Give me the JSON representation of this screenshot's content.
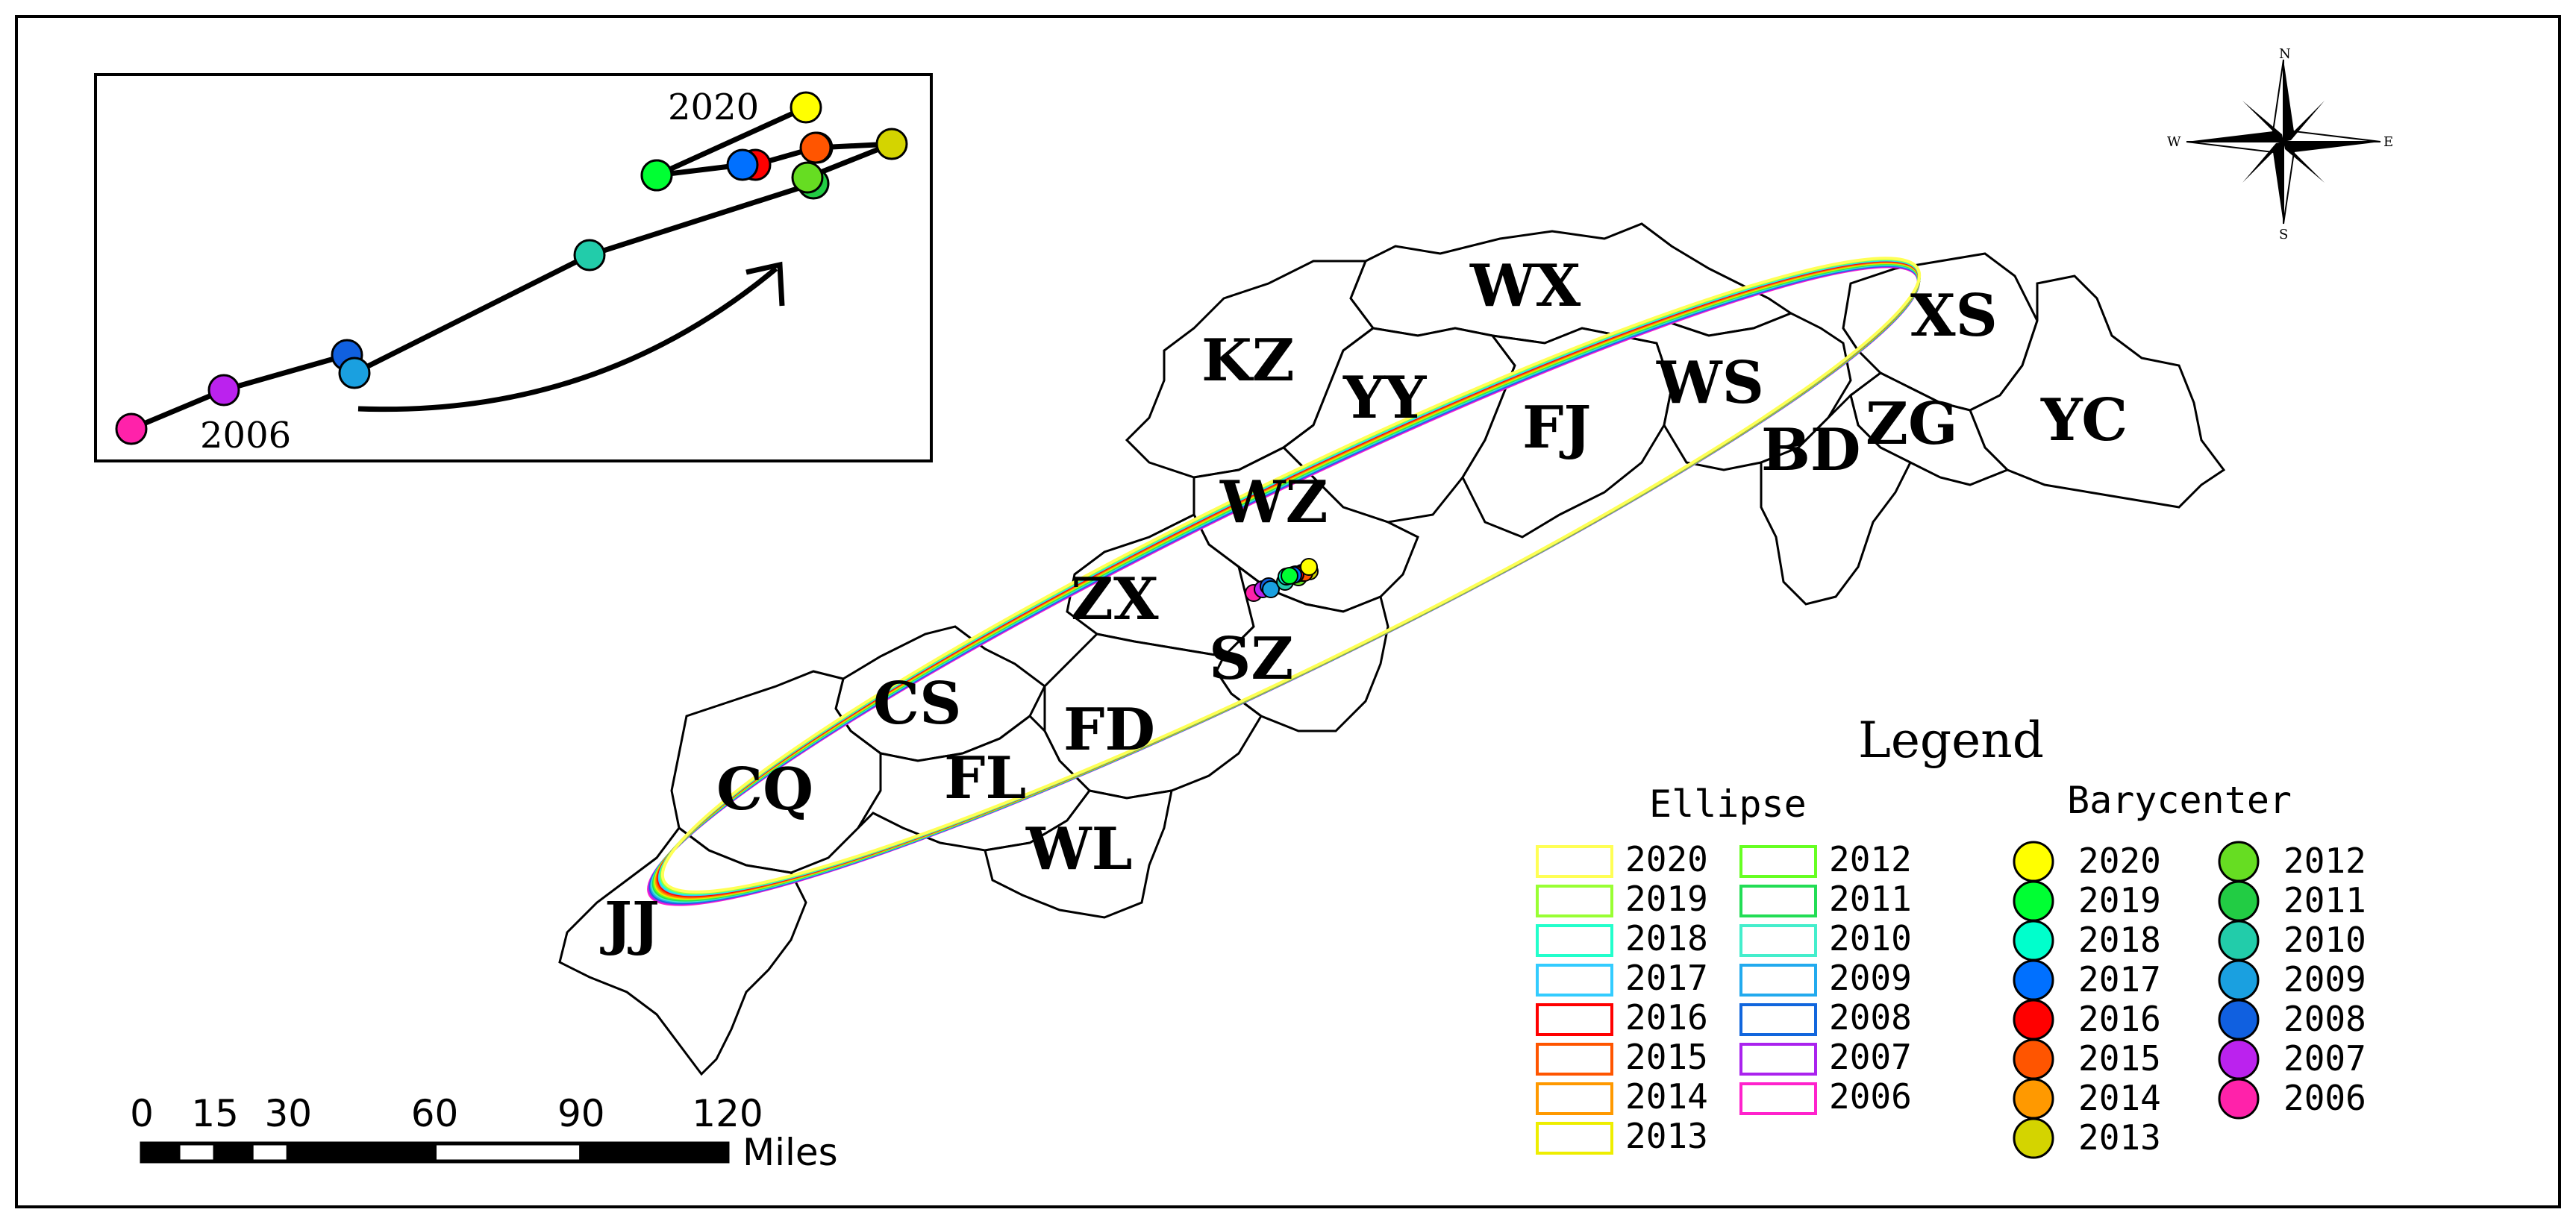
{
  "regions": [
    {
      "id": "WX",
      "label": "WX"
    },
    {
      "id": "XS",
      "label": "XS"
    },
    {
      "id": "KZ",
      "label": "KZ"
    },
    {
      "id": "YY",
      "label": "YY"
    },
    {
      "id": "WS",
      "label": "WS"
    },
    {
      "id": "FJ",
      "label": "FJ"
    },
    {
      "id": "ZG",
      "label": "ZG"
    },
    {
      "id": "YC",
      "label": "YC"
    },
    {
      "id": "BD",
      "label": "BD"
    },
    {
      "id": "WZ",
      "label": "WZ"
    },
    {
      "id": "ZX",
      "label": "ZX"
    },
    {
      "id": "SZ",
      "label": "SZ"
    },
    {
      "id": "CS",
      "label": "CS"
    },
    {
      "id": "FD",
      "label": "FD"
    },
    {
      "id": "CQ",
      "label": "CQ"
    },
    {
      "id": "FL",
      "label": "FL"
    },
    {
      "id": "WL",
      "label": "WL"
    },
    {
      "id": "JJ",
      "label": "JJ"
    }
  ],
  "years": [
    "2006",
    "2007",
    "2008",
    "2009",
    "2010",
    "2011",
    "2012",
    "2013",
    "2014",
    "2015",
    "2016",
    "2017",
    "2018",
    "2019",
    "2020"
  ],
  "year_colors": {
    "2020": "#ffff00",
    "2019": "#00ff33",
    "2018": "#00ffcc",
    "2017": "#0070ff",
    "2016": "#ff0000",
    "2015": "#ff5500",
    "2014": "#ff9900",
    "2013": "#d4d400",
    "2012": "#66dd22",
    "2011": "#22cc44",
    "2010": "#22ccaa",
    "2009": "#1aa0e0",
    "2008": "#1060e0",
    "2007": "#bb22ee",
    "2006": "#ff22aa"
  },
  "ellipse_colors": {
    "2020": "#ffff55",
    "2019": "#99ff33",
    "2018": "#22ffcc",
    "2017": "#33ccff",
    "2016": "#ff0000",
    "2015": "#ff5500",
    "2014": "#ff9900",
    "2013": "#eeee00",
    "2012": "#66ff22",
    "2011": "#22dd55",
    "2010": "#44eecc",
    "2009": "#22aaee",
    "2008": "#1166dd",
    "2007": "#aa22ee",
    "2006": "#ff22cc"
  },
  "legend": {
    "title": "Legend",
    "ellipse_header": "Ellipse",
    "barycenter_header": "Barycenter",
    "ellipse_col1": [
      "2020",
      "2019",
      "2018",
      "2017",
      "2016",
      "2015",
      "2014",
      "2013"
    ],
    "ellipse_col2": [
      "2012",
      "2011",
      "2010",
      "2009",
      "2008",
      "2007",
      "2006"
    ],
    "bary_col1": [
      "2020",
      "2019",
      "2018",
      "2017",
      "2016",
      "2015",
      "2014",
      "2013"
    ],
    "bary_col2": [
      "2012",
      "2011",
      "2010",
      "2009",
      "2008",
      "2007",
      "2006"
    ]
  },
  "inset": {
    "label_start": "2006",
    "label_end": "2020",
    "trajectory_order": [
      "2006",
      "2007",
      "2008",
      "2009",
      "2010",
      "2011",
      "2012",
      "2013",
      "2014",
      "2015",
      "2016",
      "2017",
      "2018",
      "2019",
      "2020"
    ]
  },
  "scale_bar": {
    "ticks": [
      "0",
      "15",
      "30",
      "60",
      "90",
      "120"
    ],
    "unit": "Miles"
  },
  "compass": {
    "n": "N",
    "s": "S",
    "e": "E",
    "w": "W"
  }
}
